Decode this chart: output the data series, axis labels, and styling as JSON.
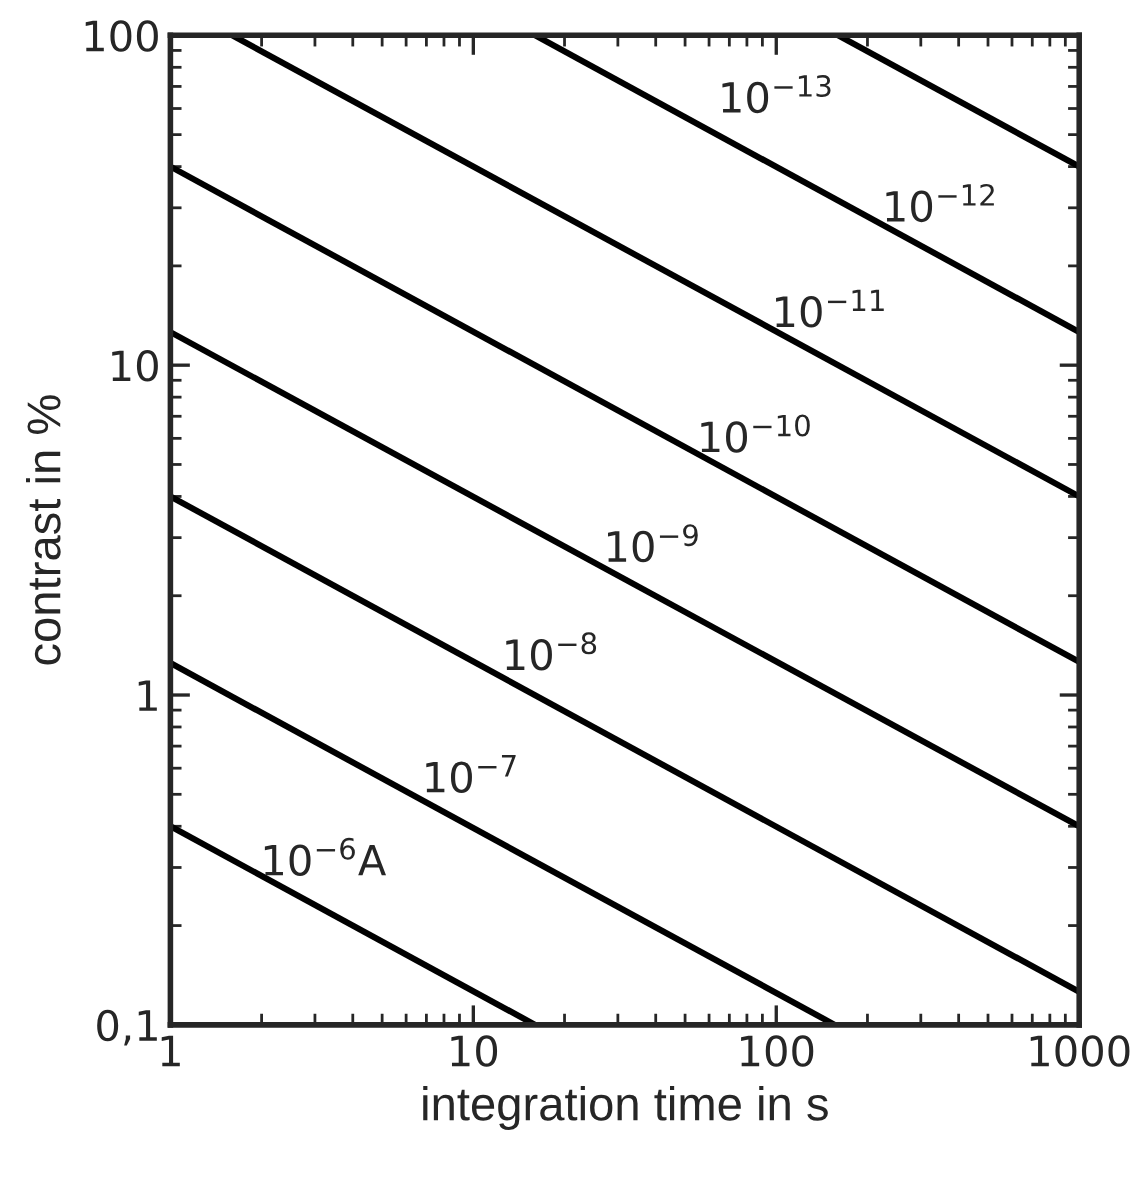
{
  "chart_data": {
    "type": "line",
    "xlabel": "integration time in s",
    "ylabel": "contrast in %",
    "log": "xy",
    "xlim": [
      1,
      1000
    ],
    "ylim": [
      0.1,
      100
    ],
    "xticks": [
      1,
      10,
      100,
      1000
    ],
    "yticks": [
      {
        "value": 0.1,
        "label": "0,1"
      },
      1,
      10,
      100
    ],
    "grid": false,
    "legend": false,
    "marker": "none",
    "line_style": "solid",
    "series": [
      {
        "color": "#000000",
        "x": [
          1,
          16
        ],
        "values": [
          0.4,
          0.1
        ]
      },
      {
        "color": "#000000",
        "x": [
          1,
          156
        ],
        "values": [
          1.25,
          0.1
        ]
      },
      {
        "color": "#000000",
        "x": [
          1,
          1000
        ],
        "values": [
          4,
          0.126
        ]
      },
      {
        "color": "#000000",
        "x": [
          1,
          1000
        ],
        "values": [
          12.6,
          0.4
        ]
      },
      {
        "color": "#000000",
        "x": [
          1,
          1000
        ],
        "values": [
          40,
          1.26
        ]
      },
      {
        "color": "#000000",
        "x": [
          1.6,
          1000
        ],
        "values": [
          100,
          4
        ]
      },
      {
        "color": "#000000",
        "x": [
          16,
          1000
        ],
        "values": [
          100,
          12.6
        ]
      },
      {
        "color": "#000000",
        "x": [
          160,
          1000
        ],
        "values": [
          100,
          40
        ]
      }
    ],
    "annotations": [
      {
        "text": "10$^{−6}$A",
        "x": 3.2,
        "y": 0.224
      },
      {
        "text": "10$^{−7}$",
        "x": 9.8,
        "y": 0.4
      },
      {
        "text": "10$^{−8}$",
        "x": 18,
        "y": 0.94
      },
      {
        "text": "10$^{−9}$",
        "x": 39,
        "y": 2
      },
      {
        "text": "10$^{−10}$",
        "x": 85,
        "y": 4.3
      },
      {
        "text": "10$^{−11}$",
        "x": 150,
        "y": 10.3
      },
      {
        "text": "10$^{−12}$",
        "x": 347,
        "y": 21.5
      },
      {
        "text": "10$^{−13}$",
        "x": 200,
        "y": 89.4
      }
    ]
  }
}
